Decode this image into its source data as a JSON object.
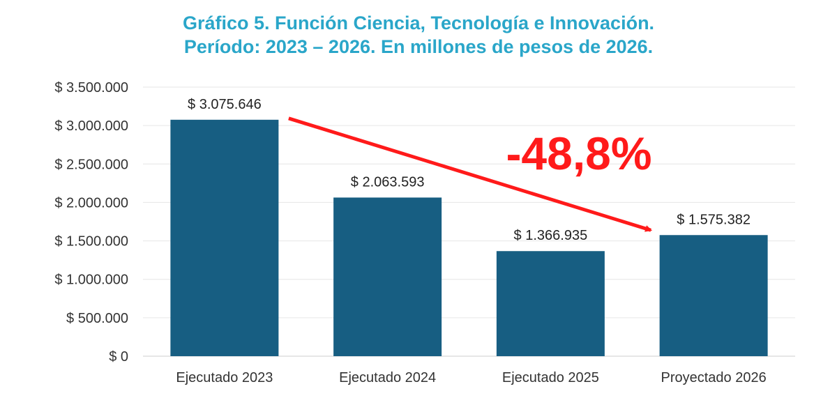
{
  "chart_data": {
    "type": "bar",
    "title": "Gráfico 5. Función Ciencia, Tecnología e Innovación.",
    "subtitle": "Período: 2023 – 2026. En millones de pesos de 2026.",
    "categories": [
      "Ejecutado 2023",
      "Ejecutado 2024",
      "Ejecutado 2025",
      "Proyectado 2026"
    ],
    "values": [
      3075646,
      2063593,
      1366935,
      1575382
    ],
    "value_labels": [
      "$ 3.075.646",
      "$ 2.063.593",
      "$ 1.366.935",
      "$ 1.575.382"
    ],
    "y_ticks": [
      0,
      500000,
      1000000,
      1500000,
      2000000,
      2500000,
      3000000,
      3500000
    ],
    "y_tick_labels": [
      "$ 0",
      "$ 500.000",
      "$ 1.000.000",
      "$ 1.500.000",
      "$ 2.000.000",
      "$ 2.500.000",
      "$ 3.000.000",
      "$ 3.500.000"
    ],
    "ylim": [
      0,
      3500000
    ],
    "grid": true,
    "bar_color": "#175e82",
    "annotation": {
      "text": "-48,8%",
      "color": "#ff1a1a",
      "arrow_from_category": "Ejecutado 2023",
      "arrow_to_category": "Proyectado 2026"
    }
  }
}
